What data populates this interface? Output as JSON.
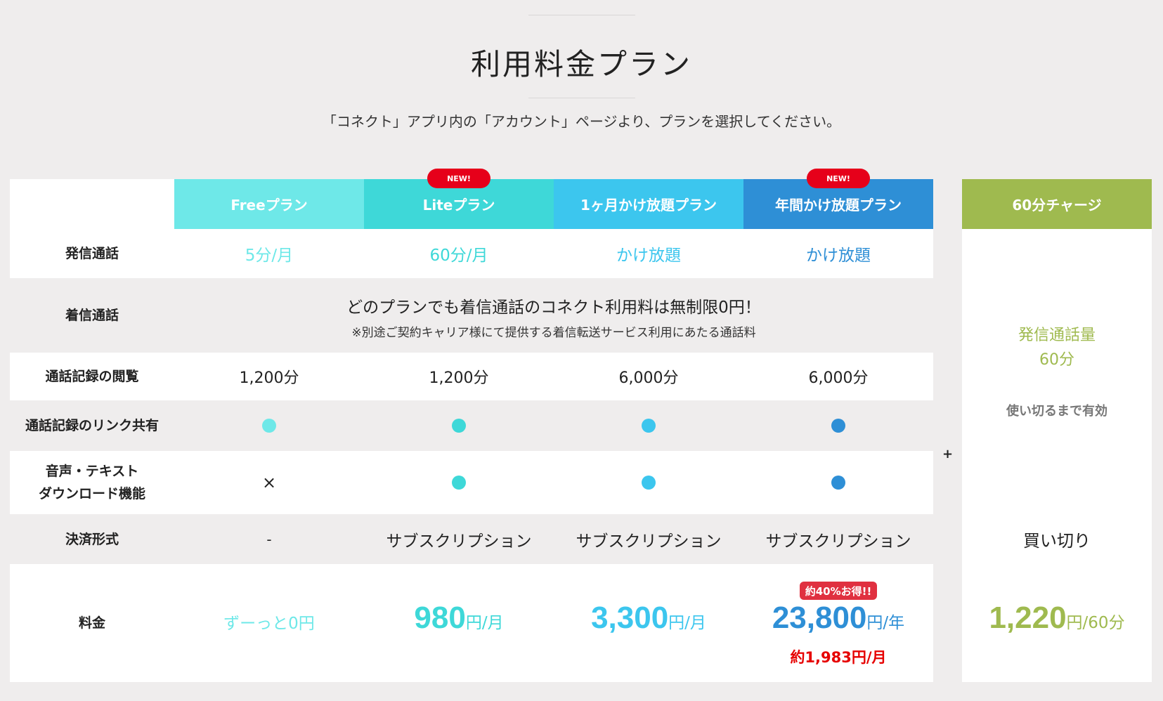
{
  "title": "利用料金プラン",
  "subtitle": "「コネクト」アプリ内の「アカウント」ページより、プランを選択してください。",
  "colors": {
    "free": "#6ee8e8",
    "lite": "#3ed8d8",
    "monthly": "#3cc6ee",
    "annual": "#2e8fd6",
    "charge": "#9fba4f",
    "badge": "#e6001a"
  },
  "plans": [
    {
      "name": "Freeプラン"
    },
    {
      "name": "Liteプラン",
      "badge": "NEW!"
    },
    {
      "name": "1ヶ月かけ放題プラン"
    },
    {
      "name": "年間かけ放題プラン",
      "badge": "NEW!"
    }
  ],
  "charge": {
    "name": "60分チャージ",
    "volume_line1": "発信通話量",
    "volume_line2": "60分",
    "validity": "使い切るまで有効",
    "payment": "買い切り",
    "price_amount": "1,220",
    "price_unit": "円/60分"
  },
  "plus_sign": "+",
  "rows": {
    "outgoing": {
      "label": "発信通話",
      "values": [
        "5分/月",
        "60分/月",
        "かけ放題",
        "かけ放題"
      ]
    },
    "incoming": {
      "label": "着信通話",
      "main": "どのプランでも着信通話のコネクト利用料は無制限0円！",
      "note": "※別途ご契約キャリア様にて提供する着信転送サービス利用にあたる通話料"
    },
    "history": {
      "label": "通話記録の閲覧",
      "values": [
        "1,200分",
        "1,200分",
        "6,000分",
        "6,000分"
      ]
    },
    "link_share": {
      "label": "通話記録のリンク共有",
      "available": [
        true,
        true,
        true,
        true
      ]
    },
    "download": {
      "label_line1": "音声・テキスト",
      "label_line2": "ダウンロード機能",
      "cross": "×",
      "available": [
        false,
        true,
        true,
        true
      ]
    },
    "payment": {
      "label": "決済形式",
      "values": [
        "-",
        "サブスクリプション",
        "サブスクリプション",
        "サブスクリプション"
      ]
    },
    "price": {
      "label": "料金",
      "free_text": "ずーっと0円",
      "lite": {
        "amount": "980",
        "unit": "円/月"
      },
      "monthly": {
        "amount": "3,300",
        "unit": "円/月"
      },
      "annual": {
        "badge": "約40%お得!!",
        "amount": "23,800",
        "unit": "円/年",
        "per_month": "約1,983円/月"
      }
    }
  }
}
